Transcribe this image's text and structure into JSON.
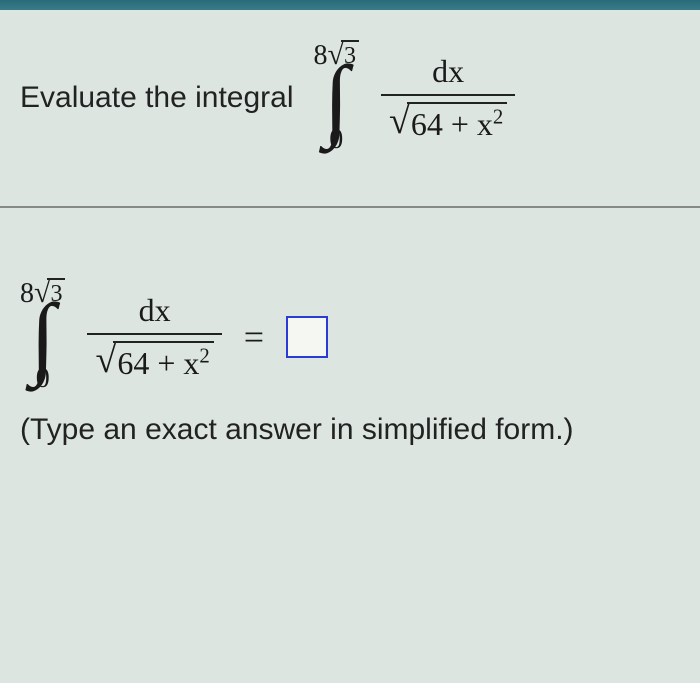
{
  "colors": {
    "background": "#dde5e0",
    "text": "#1a1a1a",
    "divider": "#888",
    "input_border": "#2a3bd6",
    "top_bar": "#2a6b7a"
  },
  "question": {
    "prompt": "Evaluate the integral",
    "integral": {
      "upper_limit_full": "8√3",
      "upper_coef": "8",
      "upper_radicand": "3",
      "lower_limit": "0",
      "numerator": "dx",
      "den_constant": "64",
      "den_plus": " + x",
      "den_exp": "2"
    }
  },
  "answer": {
    "integral": {
      "upper_coef": "8",
      "upper_radicand": "3",
      "lower_limit": "0",
      "numerator": "dx",
      "den_constant": "64",
      "den_plus": " + x",
      "den_exp": "2"
    },
    "equals": "=",
    "input_value": ""
  },
  "hint": "(Type an exact answer in simplified form.)"
}
